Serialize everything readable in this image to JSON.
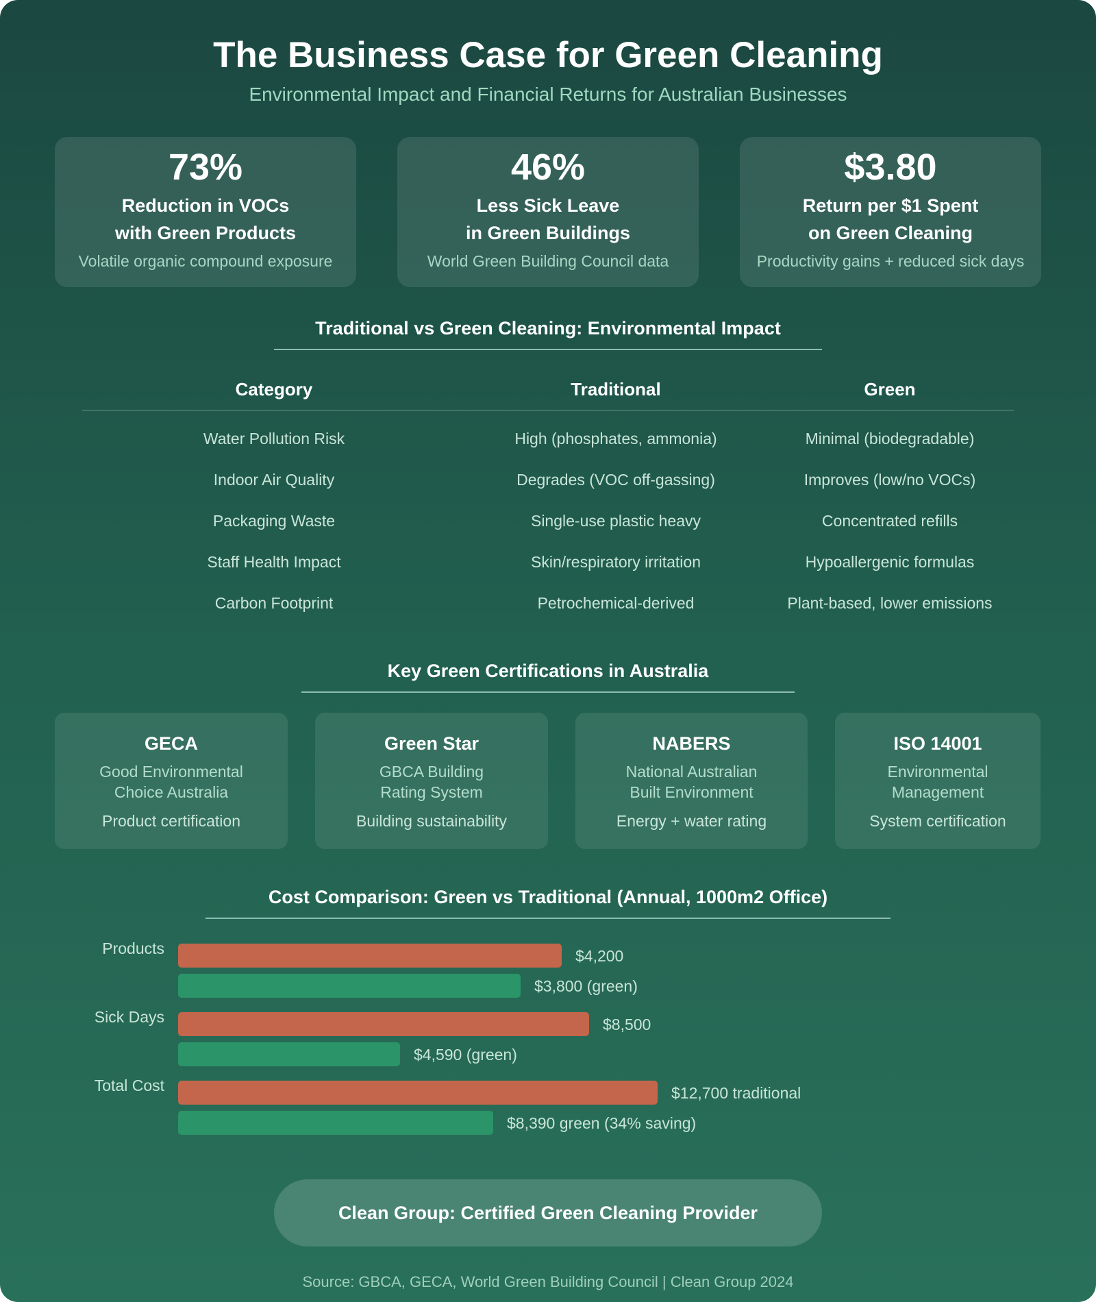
{
  "header": {
    "title": "The Business Case for Green Cleaning",
    "subtitle": "Environmental Impact and Financial Returns for Australian Businesses"
  },
  "stats": [
    {
      "value": "73%",
      "label1": "Reduction in VOCs",
      "label2": "with Green Products",
      "note": "Volatile organic compound exposure"
    },
    {
      "value": "46%",
      "label1": "Less Sick Leave",
      "label2": "in Green Buildings",
      "note": "World Green Building Council data"
    },
    {
      "value": "$3.80",
      "label1": "Return per $1 Spent",
      "label2": "on Green Cleaning",
      "note": "Productivity gains + reduced sick days"
    }
  ],
  "impact": {
    "title": "Traditional vs Green Cleaning: Environmental Impact",
    "columns": [
      "Category",
      "Traditional",
      "Green"
    ],
    "rows": [
      [
        "Water Pollution Risk",
        "High (phosphates, ammonia)",
        "Minimal (biodegradable)"
      ],
      [
        "Indoor Air Quality",
        "Degrades (VOC off-gassing)",
        "Improves (low/no VOCs)"
      ],
      [
        "Packaging Waste",
        "Single-use plastic heavy",
        "Concentrated refills"
      ],
      [
        "Staff Health Impact",
        "Skin/respiratory irritation",
        "Hypoallergenic formulas"
      ],
      [
        "Carbon Footprint",
        "Petrochemical-derived",
        "Plant-based, lower emissions"
      ]
    ]
  },
  "certifications": {
    "title": "Key Green Certifications in Australia",
    "items": [
      {
        "name": "GECA",
        "desc1": "Good Environmental",
        "desc2": "Choice Australia",
        "tag": "Product certification"
      },
      {
        "name": "Green Star",
        "desc1": "GBCA Building",
        "desc2": "Rating System",
        "tag": "Building sustainability"
      },
      {
        "name": "NABERS",
        "desc1": "National Australian",
        "desc2": "Built Environment",
        "tag": "Energy + water rating"
      },
      {
        "name": "ISO 14001",
        "desc1": "Environmental",
        "desc2": "Management",
        "tag": "System certification"
      }
    ]
  },
  "chart_data": {
    "type": "bar",
    "title": "Cost Comparison: Green vs Traditional (Annual, 1000m2 Office)",
    "categories": [
      "Products",
      "Sick Days",
      "Total Cost"
    ],
    "colors": {
      "traditional": "#c4664b",
      "green": "#2b9468"
    },
    "series": [
      {
        "key": "traditional",
        "values": [
          4200,
          8500,
          12700
        ],
        "labels": [
          "$4,200",
          "$8,500",
          "$12,700 traditional"
        ],
        "fill_pct": [
          56,
          60,
          70
        ]
      },
      {
        "key": "green",
        "values": [
          3800,
          4590,
          8390
        ],
        "labels": [
          "$3,800 (green)",
          "$4,590 (green)",
          "$8,390 green (34% saving)"
        ],
        "fill_pct": [
          50,
          32.4,
          46
        ]
      }
    ]
  },
  "cta": {
    "label": "Clean Group: Certified Green Cleaning Provider"
  },
  "footer": {
    "source": "Source: GBCA, GECA, World Green Building Council | Clean Group 2024"
  }
}
